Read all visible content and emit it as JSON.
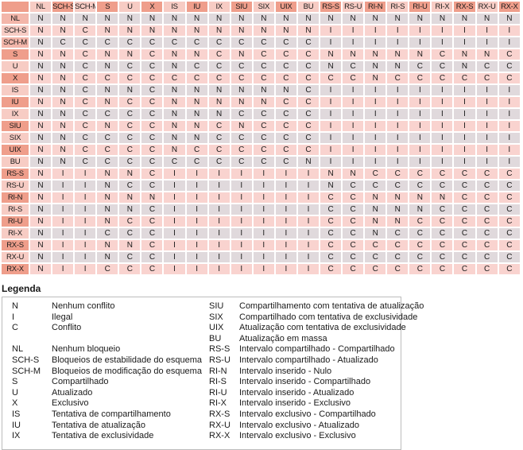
{
  "colors": {
    "header_dark": "#ef9e8b",
    "header_light": "#f7ccc4",
    "header_medium": "#f3b6aa",
    "row_gray": "#e0d9dc",
    "row_pink": "#f9d3cf",
    "grid": "#ffffff",
    "text": "#1a1a1a",
    "legend_border": "#bcbcbc"
  },
  "matrix": {
    "columns": [
      {
        "label": "NL",
        "tone": "light"
      },
      {
        "label": "SCH-S",
        "tone": "dark"
      },
      {
        "label": "SCH-M",
        "tone": "light"
      },
      {
        "label": "S",
        "tone": "dark"
      },
      {
        "label": "U",
        "tone": "light"
      },
      {
        "label": "X",
        "tone": "dark"
      },
      {
        "label": "IS",
        "tone": "light"
      },
      {
        "label": "IU",
        "tone": "dark"
      },
      {
        "label": "IX",
        "tone": "light"
      },
      {
        "label": "SIU",
        "tone": "dark"
      },
      {
        "label": "SIX",
        "tone": "light"
      },
      {
        "label": "UIX",
        "tone": "dark"
      },
      {
        "label": "BU",
        "tone": "light"
      },
      {
        "label": "RS-S",
        "tone": "dark"
      },
      {
        "label": "RS-U",
        "tone": "light"
      },
      {
        "label": "RI-N",
        "tone": "dark"
      },
      {
        "label": "RI-S",
        "tone": "light"
      },
      {
        "label": "RI-U",
        "tone": "dark"
      },
      {
        "label": "RI-X",
        "tone": "light"
      },
      {
        "label": "RX-S",
        "tone": "dark"
      },
      {
        "label": "RX-U",
        "tone": "light"
      },
      {
        "label": "RX-X",
        "tone": "dark"
      }
    ],
    "rows": [
      {
        "label": "NL",
        "tone": "medium",
        "stripe": "gray",
        "values": "NNNNNNNNNNNNNNNNNNNNNN"
      },
      {
        "label": "SCH-S",
        "tone": "light",
        "stripe": "pink",
        "values": "NNCNNNNNNNNNNIIIIIIIII"
      },
      {
        "label": "SCH-M",
        "tone": "medium",
        "stripe": "gray",
        "values": "NCCCCCCCCCCCCIIIIIIIII"
      },
      {
        "label": "S",
        "tone": "dark",
        "stripe": "pink",
        "values": "NNCNNCNNCNCCCNNNNNCNNC"
      },
      {
        "label": "U",
        "tone": "light",
        "stripe": "gray",
        "values": "NNCNCCNCCCCCCNCNNCCNCC"
      },
      {
        "label": "X",
        "tone": "dark",
        "stripe": "pink",
        "values": "NNCCCCCCCCCCCCCNCCCCCC"
      },
      {
        "label": "IS",
        "tone": "light",
        "stripe": "gray",
        "values": "NNCNNCNNNNNNCIIIIIIIII"
      },
      {
        "label": "IU",
        "tone": "dark",
        "stripe": "pink",
        "values": "NNCNCCNNNNNCCIIIIIIIII"
      },
      {
        "label": "IX",
        "tone": "light",
        "stripe": "gray",
        "values": "NNCCCCNNNCCCCIIIIIIIII"
      },
      {
        "label": "SIU",
        "tone": "dark",
        "stripe": "pink",
        "values": "NNCNCCNNCNCCCIIIIIIIII"
      },
      {
        "label": "SIX",
        "tone": "light",
        "stripe": "gray",
        "values": "NNCCCCNNCCCCCIIIIIIIII"
      },
      {
        "label": "UIX",
        "tone": "dark",
        "stripe": "pink",
        "values": "NNCCCCNCCCCCCIIIIIIIII"
      },
      {
        "label": "BU",
        "tone": "light",
        "stripe": "gray",
        "values": "NNCCCCCCCCCCNIIIIIIIII"
      },
      {
        "label": "RS-S",
        "tone": "dark",
        "stripe": "pink",
        "values": "NIINNCIIIIIIINNCCCCCCC"
      },
      {
        "label": "RS-U",
        "tone": "light",
        "stripe": "gray",
        "values": "NIINCCIIIIIIINCCCCCCCC"
      },
      {
        "label": "RI-N",
        "tone": "dark",
        "stripe": "pink",
        "values": "NIINNNIIIIIIICCNNNNCCC"
      },
      {
        "label": "RI-S",
        "tone": "light",
        "stripe": "gray",
        "values": "NIINNCIIIIIIICCNNNCCCC"
      },
      {
        "label": "RI-U",
        "tone": "dark",
        "stripe": "pink",
        "values": "NIINCCIIIIIIICCNNCCCCC"
      },
      {
        "label": "RI-X",
        "tone": "light",
        "stripe": "gray",
        "values": "NIICCCIIIIIIICCNCCCCCC"
      },
      {
        "label": "RX-S",
        "tone": "dark",
        "stripe": "pink",
        "values": "NIINNCIIIIIIICCCCCCCCC"
      },
      {
        "label": "RX-U",
        "tone": "light",
        "stripe": "gray",
        "values": "NIINCCIIIIIIICCCCCCCCC"
      },
      {
        "label": "RX-X",
        "tone": "dark",
        "stripe": "pink",
        "values": "NIICCCIIIIIIICCCCCCCCC"
      }
    ]
  },
  "legend": {
    "title": "Legenda",
    "columns": [
      [
        {
          "code": "N",
          "desc": "Nenhum conflito"
        },
        {
          "code": "I",
          "desc": "Ilegal"
        },
        {
          "code": "C",
          "desc": "Conflito"
        },
        {
          "code": "",
          "desc": ""
        },
        {
          "code": "NL",
          "desc": "Nenhum bloqueio"
        },
        {
          "code": "SCH-S",
          "desc": "Bloqueios de estabilidade do esquema"
        },
        {
          "code": "SCH-M",
          "desc": "Bloqueios de modificação do esquema"
        },
        {
          "code": "S",
          "desc": "Compartilhado"
        },
        {
          "code": "U",
          "desc": "Atualizado"
        },
        {
          "code": "X",
          "desc": "Exclusivo"
        },
        {
          "code": "IS",
          "desc": "Tentativa de compartilhamento"
        },
        {
          "code": "IU",
          "desc": "Tentativa de atualização"
        },
        {
          "code": "IX",
          "desc": "Tentativa de exclusividade"
        }
      ],
      [
        {
          "code": "SIU",
          "desc": "Compartilhamento com tentativa de atualização"
        },
        {
          "code": "SIX",
          "desc": "Compartilhado com tentativa de exclusividade"
        },
        {
          "code": "UIX",
          "desc": "Atualização com tentativa de exclusividade"
        },
        {
          "code": "BU",
          "desc": "Atualização em massa"
        },
        {
          "code": "RS-S",
          "desc": "Intervalo compartilhado - Compartilhado"
        },
        {
          "code": "RS-U",
          "desc": "Intervalo compartilhado - Atualizado"
        },
        {
          "code": "RI-N",
          "desc": "Intervalo inserido - Nulo"
        },
        {
          "code": "RI-S",
          "desc": "Intervalo inserido - Compartilhado"
        },
        {
          "code": "RI-U",
          "desc": "Intervalo inserido - Atualizado"
        },
        {
          "code": "RI-X",
          "desc": "Intervalo inserido - Exclusivo"
        },
        {
          "code": "RX-S",
          "desc": "Intervalo exclusivo - Compartilhado"
        },
        {
          "code": "RX-U",
          "desc": "Intervalo exclusivo - Atualizado"
        },
        {
          "code": "RX-X",
          "desc": "Intervalo exclusivo - Exclusivo"
        }
      ]
    ]
  }
}
